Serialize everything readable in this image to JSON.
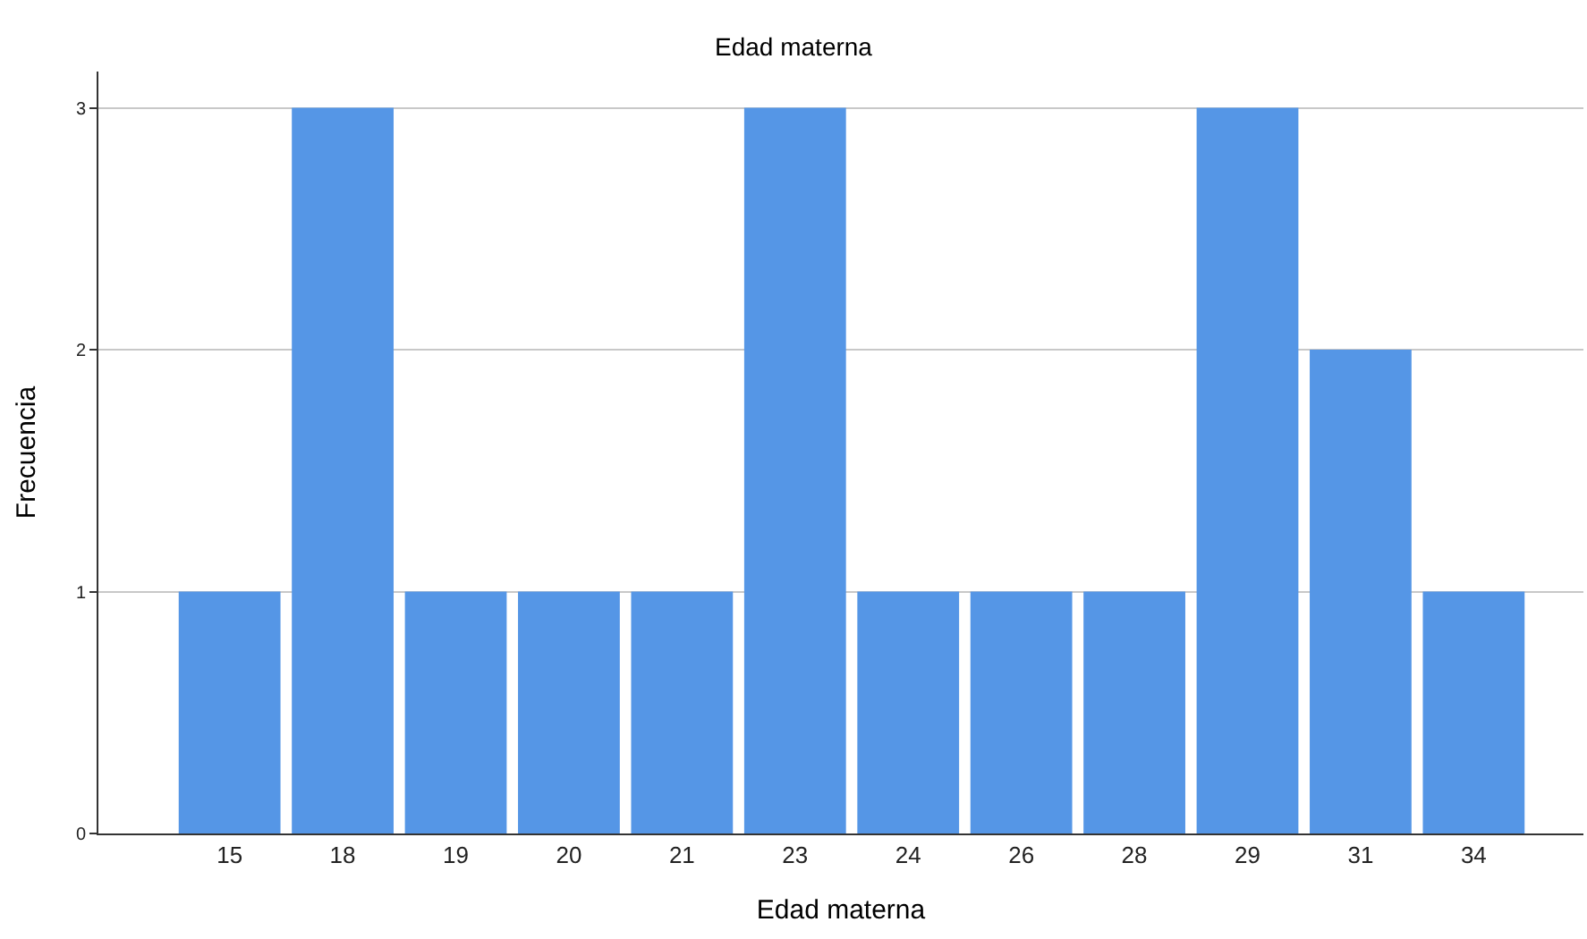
{
  "chart_data": {
    "type": "bar",
    "title": "Edad materna",
    "xlabel": "Edad materna",
    "ylabel": "Frecuencia",
    "categories": [
      "15",
      "18",
      "19",
      "20",
      "21",
      "23",
      "24",
      "26",
      "28",
      "29",
      "31",
      "34"
    ],
    "values": [
      1,
      3,
      1,
      1,
      1,
      3,
      1,
      1,
      1,
      3,
      2,
      1
    ],
    "color": "#5596e6",
    "ylim": [
      0,
      3.15
    ],
    "yticks": [
      0,
      1,
      2,
      3
    ],
    "grid": "y"
  }
}
